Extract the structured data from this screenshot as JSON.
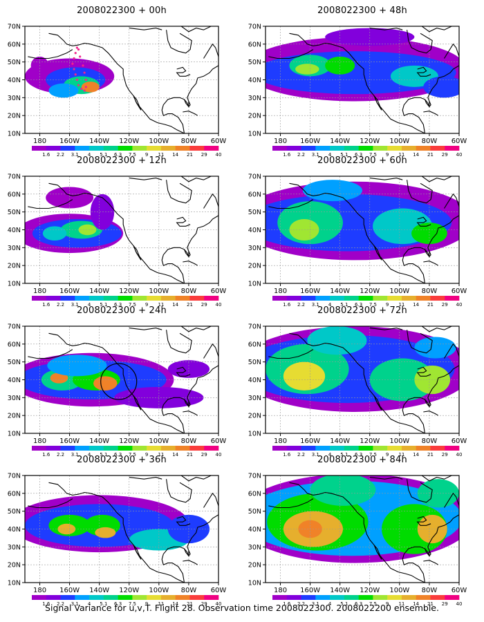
{
  "figure": {
    "caption": "Signal Variance for u,v,T. Flight 28. Observation time 2008022300. 2008022200 ensemble."
  },
  "colorbar_labels": [
    "1.6",
    "2.2",
    "3.1",
    "4",
    "5.1",
    "6.3",
    "7.5",
    "9",
    "11",
    "14",
    "21",
    "29",
    "40"
  ],
  "colorbar_colors": [
    "#a000c8",
    "#8200dc",
    "#1e3cff",
    "#00a0ff",
    "#00c8c8",
    "#00d28c",
    "#00dc00",
    "#a0e632",
    "#e6dc32",
    "#e6af2d",
    "#f08228",
    "#fa3c3c",
    "#f00082"
  ],
  "x_ticks": [
    "180",
    "160W",
    "140W",
    "120W",
    "100W",
    "80W",
    "60W"
  ],
  "y_ticks": [
    "70N",
    "60N",
    "50N",
    "40N",
    "30N",
    "20N",
    "10N"
  ],
  "chart_data": [
    {
      "type": "heatmap",
      "title": "2008022300 + 00h",
      "xlim": [
        "170E",
        "60W"
      ],
      "ylim": [
        "10N",
        "70N"
      ],
      "max_level": "11",
      "grid": true
    },
    {
      "type": "heatmap",
      "title": "2008022300 + 12h",
      "xlim": [
        "170E",
        "60W"
      ],
      "ylim": [
        "10N",
        "70N"
      ],
      "max_level": "9",
      "grid": true
    },
    {
      "type": "heatmap",
      "title": "2008022300 + 24h",
      "xlim": [
        "170E",
        "60W"
      ],
      "ylim": [
        "10N",
        "70N"
      ],
      "max_level": "14",
      "grid": true
    },
    {
      "type": "heatmap",
      "title": "2008022300 + 36h",
      "xlim": [
        "170E",
        "60W"
      ],
      "ylim": [
        "10N",
        "70N"
      ],
      "max_level": "14",
      "grid": true
    },
    {
      "type": "heatmap",
      "title": "2008022300 + 48h",
      "xlim": [
        "170E",
        "60W"
      ],
      "ylim": [
        "10N",
        "70N"
      ],
      "max_level": "9",
      "grid": true
    },
    {
      "type": "heatmap",
      "title": "2008022300 + 60h",
      "xlim": [
        "170E",
        "60W"
      ],
      "ylim": [
        "10N",
        "70N"
      ],
      "max_level": "11",
      "grid": true
    },
    {
      "type": "heatmap",
      "title": "2008022300 + 72h",
      "xlim": [
        "170E",
        "60W"
      ],
      "ylim": [
        "10N",
        "70N"
      ],
      "max_level": "14",
      "grid": true
    },
    {
      "type": "heatmap",
      "title": "2008022300 + 84h",
      "xlim": [
        "170E",
        "60W"
      ],
      "ylim": [
        "10N",
        "70N"
      ],
      "max_level": "21",
      "grid": true
    }
  ]
}
